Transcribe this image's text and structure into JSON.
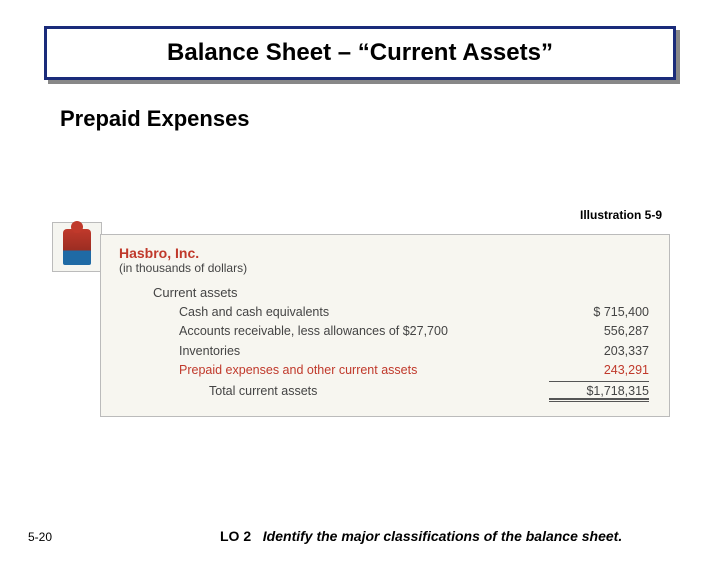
{
  "title": "Balance Sheet – “Current Assets”",
  "section_heading": "Prepaid Expenses",
  "illustration_label": "Illustration 5-9",
  "company": {
    "name": "Hasbro, Inc.",
    "subtitle": "(in thousands of dollars)"
  },
  "table": {
    "section_title": "Current assets",
    "rows": [
      {
        "label": "Cash and cash equivalents",
        "value": "$   715,400",
        "highlight": false
      },
      {
        "label": "Accounts receivable, less allowances of $27,700",
        "value": "556,287",
        "highlight": false
      },
      {
        "label": "Inventories",
        "value": "203,337",
        "highlight": false
      },
      {
        "label": "Prepaid expenses and other current assets",
        "value": "243,291",
        "highlight": true
      }
    ],
    "total": {
      "label": "Total current assets",
      "value": "$1,718,315"
    }
  },
  "page_number": "5-20",
  "learning_objective": {
    "code": "LO 2",
    "text": "Identify the major classifications of the balance sheet."
  },
  "colors": {
    "banner_border": "#1a2b7a",
    "highlight": "#c0392b",
    "frame_bg": "#f7f6f0"
  }
}
